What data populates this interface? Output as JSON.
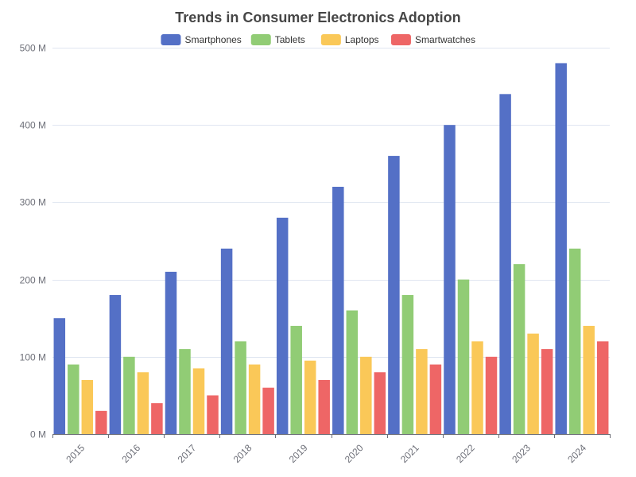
{
  "chart_data": {
    "type": "bar",
    "title": "Trends in Consumer Electronics Adoption",
    "categories": [
      "2015",
      "2016",
      "2017",
      "2018",
      "2019",
      "2020",
      "2021",
      "2022",
      "2023",
      "2024"
    ],
    "series": [
      {
        "name": "Smartphones",
        "color": "#5470c6",
        "values": [
          150,
          180,
          210,
          240,
          280,
          320,
          360,
          400,
          440,
          480
        ]
      },
      {
        "name": "Tablets",
        "color": "#91cc75",
        "values": [
          90,
          100,
          110,
          120,
          140,
          160,
          180,
          200,
          220,
          240
        ]
      },
      {
        "name": "Laptops",
        "color": "#fac858",
        "values": [
          70,
          80,
          85,
          90,
          95,
          100,
          110,
          120,
          130,
          140
        ]
      },
      {
        "name": "Smartwatches",
        "color": "#ee6666",
        "values": [
          30,
          40,
          50,
          60,
          70,
          80,
          90,
          100,
          110,
          120
        ]
      }
    ],
    "ylim": [
      0,
      500
    ],
    "yticks": [
      0,
      100,
      200,
      300,
      400,
      500
    ],
    "ytick_labels": [
      "0 M",
      "100 M",
      "200 M",
      "300 M",
      "400 M",
      "500 M"
    ],
    "legend_position": "top-center",
    "grid": true
  }
}
